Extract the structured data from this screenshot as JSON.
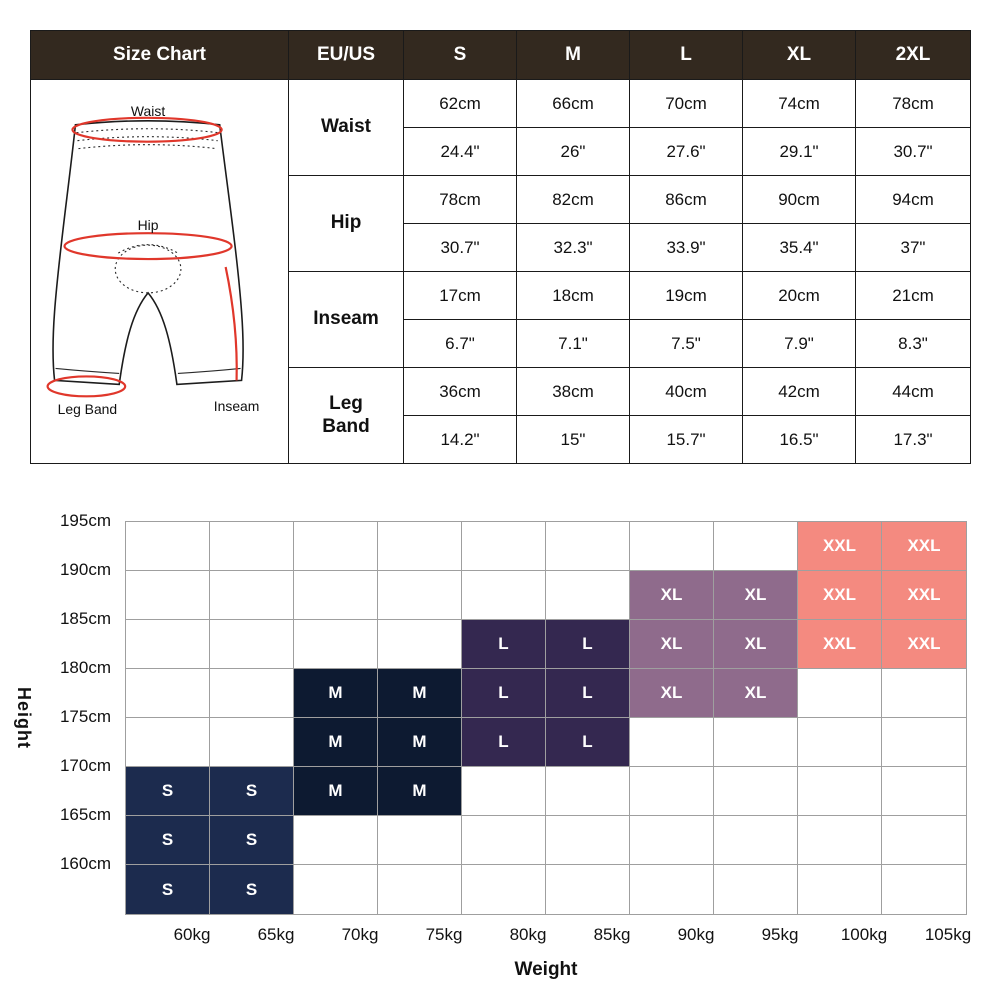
{
  "colors": {
    "header_bg": "#33291f",
    "grid_line": "#9f9f9f",
    "mark_red": "#e0372b"
  },
  "size_table": {
    "title": "Size Chart",
    "unit_header": "EU/US",
    "sizes": [
      "S",
      "M",
      "L",
      "XL",
      "2XL"
    ],
    "rows": [
      {
        "label": "Waist",
        "cm": [
          "62cm",
          "66cm",
          "70cm",
          "74cm",
          "78cm"
        ],
        "inch": [
          "24.4\"",
          "26\"",
          "27.6\"",
          "29.1\"",
          "30.7\""
        ]
      },
      {
        "label": "Hip",
        "cm": [
          "78cm",
          "82cm",
          "86cm",
          "90cm",
          "94cm"
        ],
        "inch": [
          "30.7\"",
          "32.3\"",
          "33.9\"",
          "35.4\"",
          "37\""
        ]
      },
      {
        "label": "Inseam",
        "cm": [
          "17cm",
          "18cm",
          "19cm",
          "20cm",
          "21cm"
        ],
        "inch": [
          "6.7\"",
          "7.1\"",
          "7.5\"",
          "7.9\"",
          "8.3\""
        ]
      },
      {
        "label": "Leg\nBand",
        "cm": [
          "36cm",
          "38cm",
          "40cm",
          "42cm",
          "44cm"
        ],
        "inch": [
          "14.2\"",
          "15\"",
          "15.7\"",
          "16.5\"",
          "17.3\""
        ]
      }
    ],
    "diagram_labels": {
      "waist": "Waist",
      "hip": "Hip",
      "leg_band": "Leg Band",
      "inseam": "Inseam"
    }
  },
  "chart_data": {
    "type": "heatmap",
    "xlabel": "Weight",
    "ylabel": "Height",
    "x_ticks": [
      "60kg",
      "65kg",
      "70kg",
      "75kg",
      "80kg",
      "85kg",
      "90kg",
      "95kg",
      "100kg",
      "105kg"
    ],
    "y_ticks": [
      "195cm",
      "190cm",
      "185cm",
      "180cm",
      "175cm",
      "170cm",
      "165cm",
      "160cm"
    ],
    "columns": 10,
    "rows": 8,
    "cells": [
      {
        "row": 0,
        "cols": [
          8,
          9
        ],
        "size": "XXL"
      },
      {
        "row": 1,
        "cols": [
          6,
          7
        ],
        "size": "XL"
      },
      {
        "row": 1,
        "cols": [
          8,
          9
        ],
        "size": "XXL"
      },
      {
        "row": 2,
        "cols": [
          4,
          5
        ],
        "size": "L"
      },
      {
        "row": 2,
        "cols": [
          6,
          7
        ],
        "size": "XL"
      },
      {
        "row": 2,
        "cols": [
          8,
          9
        ],
        "size": "XXL"
      },
      {
        "row": 3,
        "cols": [
          2,
          3
        ],
        "size": "M"
      },
      {
        "row": 3,
        "cols": [
          4,
          5
        ],
        "size": "L"
      },
      {
        "row": 3,
        "cols": [
          6,
          7
        ],
        "size": "XL"
      },
      {
        "row": 4,
        "cols": [
          2,
          3
        ],
        "size": "M"
      },
      {
        "row": 4,
        "cols": [
          4,
          5
        ],
        "size": "L"
      },
      {
        "row": 5,
        "cols": [
          0,
          1
        ],
        "size": "S"
      },
      {
        "row": 5,
        "cols": [
          2,
          3
        ],
        "size": "M"
      },
      {
        "row": 6,
        "cols": [
          0,
          1
        ],
        "size": "S"
      },
      {
        "row": 7,
        "cols": [
          0,
          1
        ],
        "size": "S"
      }
    ],
    "size_colors": {
      "S": "#1c2b4e",
      "M": "#0d1a31",
      "L": "#342850",
      "XL": "#8f6b8c",
      "XXL": "#f48a80"
    }
  }
}
